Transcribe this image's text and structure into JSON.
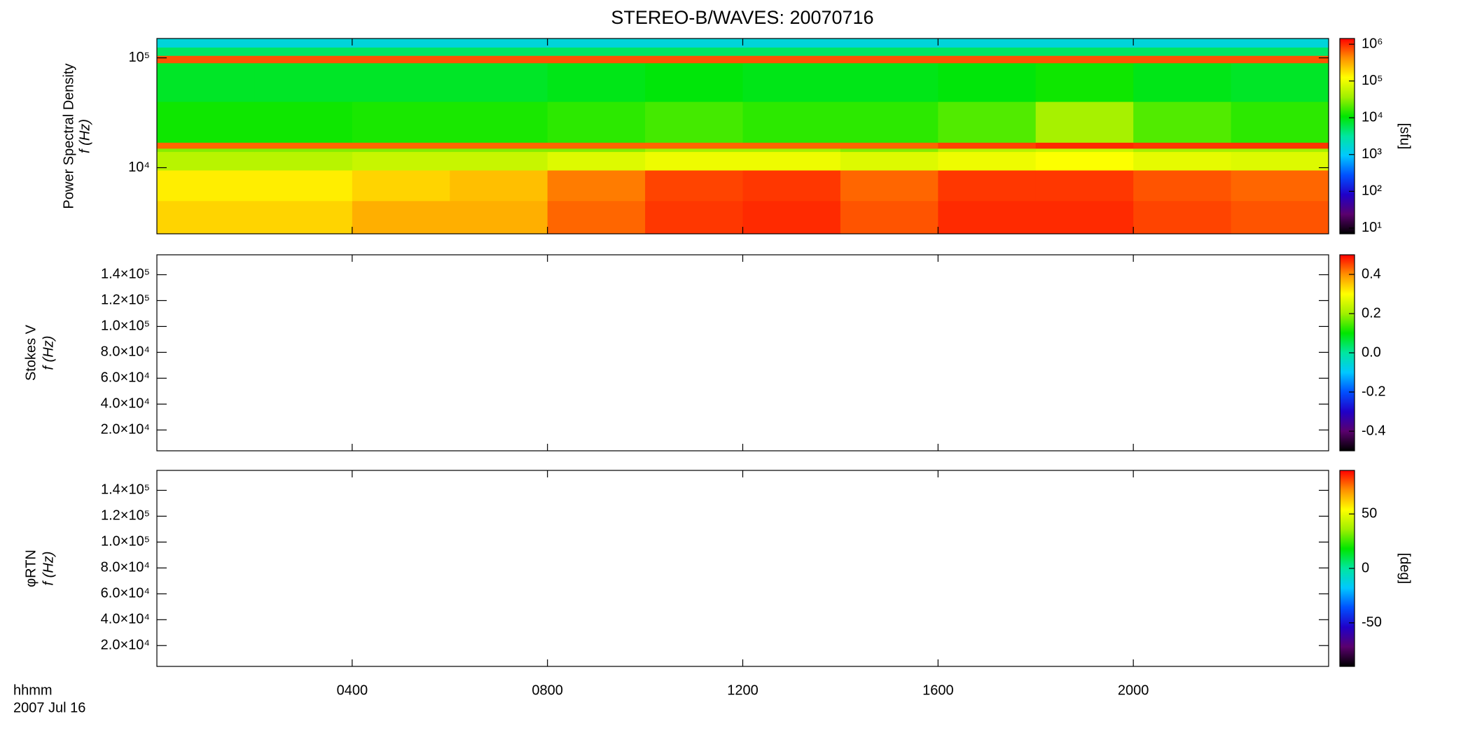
{
  "title": "STEREO-B/WAVES: 20070716",
  "x_label": [
    "hhmm",
    "2007 Jul 16"
  ],
  "chart_data": [
    {
      "type": "heatmap",
      "ylabel": [
        "Power Spectral Density",
        "f (Hz)"
      ],
      "xlim": [
        0,
        24
      ],
      "xticks": [
        {
          "value": 4,
          "label": "0400"
        },
        {
          "value": 8,
          "label": "0800"
        },
        {
          "value": 12,
          "label": "1200"
        },
        {
          "value": 16,
          "label": "1600"
        },
        {
          "value": 20,
          "label": "2000"
        }
      ],
      "ylim": [
        2500,
        150000
      ],
      "ylog": true,
      "yticks": [
        {
          "value": 10000,
          "label": "10⁴"
        },
        {
          "value": 100000,
          "label": "10⁵"
        }
      ],
      "bins": [
        0,
        2,
        4,
        6,
        8,
        10,
        12,
        14,
        16,
        18,
        20,
        22,
        24
      ],
      "y_bins": [
        2500,
        5000,
        9500,
        14000,
        15000,
        17000,
        40000,
        90000,
        105000,
        125000,
        150000
      ],
      "z": [
        [
          200000,
          200000,
          300000,
          300000,
          600000,
          900000,
          1000000,
          700000,
          1000000,
          1000000,
          800000,
          700000
        ],
        [
          150000,
          150000,
          200000,
          250000,
          500000,
          800000,
          900000,
          600000,
          900000,
          900000,
          700000,
          600000
        ],
        [
          50000,
          50000,
          60000,
          60000,
          80000,
          100000,
          100000,
          80000,
          100000,
          120000,
          90000,
          80000
        ],
        [
          30000,
          30000,
          30000,
          30000,
          30000,
          40000,
          40000,
          30000,
          50000,
          60000,
          40000,
          40000
        ],
        [
          600000,
          600000,
          600000,
          600000,
          600000,
          600000,
          600000,
          600000,
          800000,
          1000000,
          900000,
          900000
        ],
        [
          12000,
          12000,
          13000,
          13000,
          15000,
          18000,
          15000,
          15000,
          20000,
          40000,
          20000,
          15000
        ],
        [
          8000,
          8000,
          8000,
          8000,
          9000,
          10000,
          9000,
          9000,
          10000,
          12000,
          9000,
          8000
        ],
        [
          700000,
          700000,
          700000,
          700000,
          700000,
          700000,
          700000,
          700000,
          700000,
          700000,
          700000,
          700000
        ],
        [
          5000,
          5000,
          5000,
          5000,
          5000,
          5000,
          5000,
          5000,
          5000,
          5000,
          5000,
          5000
        ],
        [
          1500,
          1500,
          1500,
          1500,
          1500,
          1500,
          1500,
          1500,
          1500,
          1500,
          1500,
          1500
        ]
      ],
      "colormap": [
        "#000000",
        "#5a006e",
        "#2000c8",
        "#0050ff",
        "#00c8ff",
        "#00e6a0",
        "#00e600",
        "#a0f000",
        "#ffff00",
        "#ff9000",
        "#ff0000"
      ],
      "colorbar": {
        "lim": [
          7,
          1430000
        ],
        "log": true,
        "label": "[sfu]",
        "ticks": [
          {
            "value": 10,
            "label": "10¹"
          },
          {
            "value": 100,
            "label": "10²"
          },
          {
            "value": 1000,
            "label": "10³"
          },
          {
            "value": 10000,
            "label": "10⁴"
          },
          {
            "value": 100000,
            "label": "10⁵"
          },
          {
            "value": 1000000,
            "label": "10⁶"
          }
        ]
      }
    },
    {
      "type": "heatmap",
      "ylabel": [
        "Stokes V",
        "f (Hz)"
      ],
      "xlim": [
        0,
        24
      ],
      "xticks": [
        4,
        8,
        12,
        16,
        20
      ],
      "ylim": [
        3900,
        155400
      ],
      "yticks": [
        {
          "value": 20000,
          "label": "2.0×10⁴"
        },
        {
          "value": 40000,
          "label": "4.0×10⁴"
        },
        {
          "value": 60000,
          "label": "6.0×10⁴"
        },
        {
          "value": 80000,
          "label": "8.0×10⁴"
        },
        {
          "value": 100000,
          "label": "1.0×10⁵"
        },
        {
          "value": 120000,
          "label": "1.2×10⁵"
        },
        {
          "value": 140000,
          "label": "1.4×10⁵"
        }
      ],
      "colormap": [
        "#000000",
        "#5a006e",
        "#2000c8",
        "#0050ff",
        "#00c8ff",
        "#00e6a0",
        "#00e600",
        "#a0f000",
        "#ffff00",
        "#ff9000",
        "#ff0000"
      ],
      "colorbar": {
        "lim": [
          -0.5,
          0.5
        ],
        "ticks": [
          -0.4,
          -0.2,
          {
            "value": 0,
            "label": "0.0"
          },
          0.2,
          0.4
        ]
      }
    },
    {
      "type": "heatmap",
      "ylabel": [
        "φRTN",
        "f (Hz)"
      ],
      "xlim": [
        0,
        24
      ],
      "xticks": [
        4,
        8,
        12,
        16,
        20
      ],
      "ylim": [
        3900,
        155400
      ],
      "yticks": [
        {
          "value": 20000,
          "label": "2.0×10⁴"
        },
        {
          "value": 40000,
          "label": "4.0×10⁴"
        },
        {
          "value": 60000,
          "label": "6.0×10⁴"
        },
        {
          "value": 80000,
          "label": "8.0×10⁴"
        },
        {
          "value": 100000,
          "label": "1.0×10⁵"
        },
        {
          "value": 120000,
          "label": "1.2×10⁵"
        },
        {
          "value": 140000,
          "label": "1.4×10⁵"
        }
      ],
      "colormap": [
        "#000000",
        "#5a006e",
        "#2000c8",
        "#0050ff",
        "#00c8ff",
        "#00e6a0",
        "#00e600",
        "#a0f000",
        "#ffff00",
        "#ff9000",
        "#ff0000"
      ],
      "colorbar": {
        "lim": [
          -90,
          90
        ],
        "label": "[deg]",
        "ticks": [
          -50,
          0,
          50
        ]
      }
    }
  ]
}
